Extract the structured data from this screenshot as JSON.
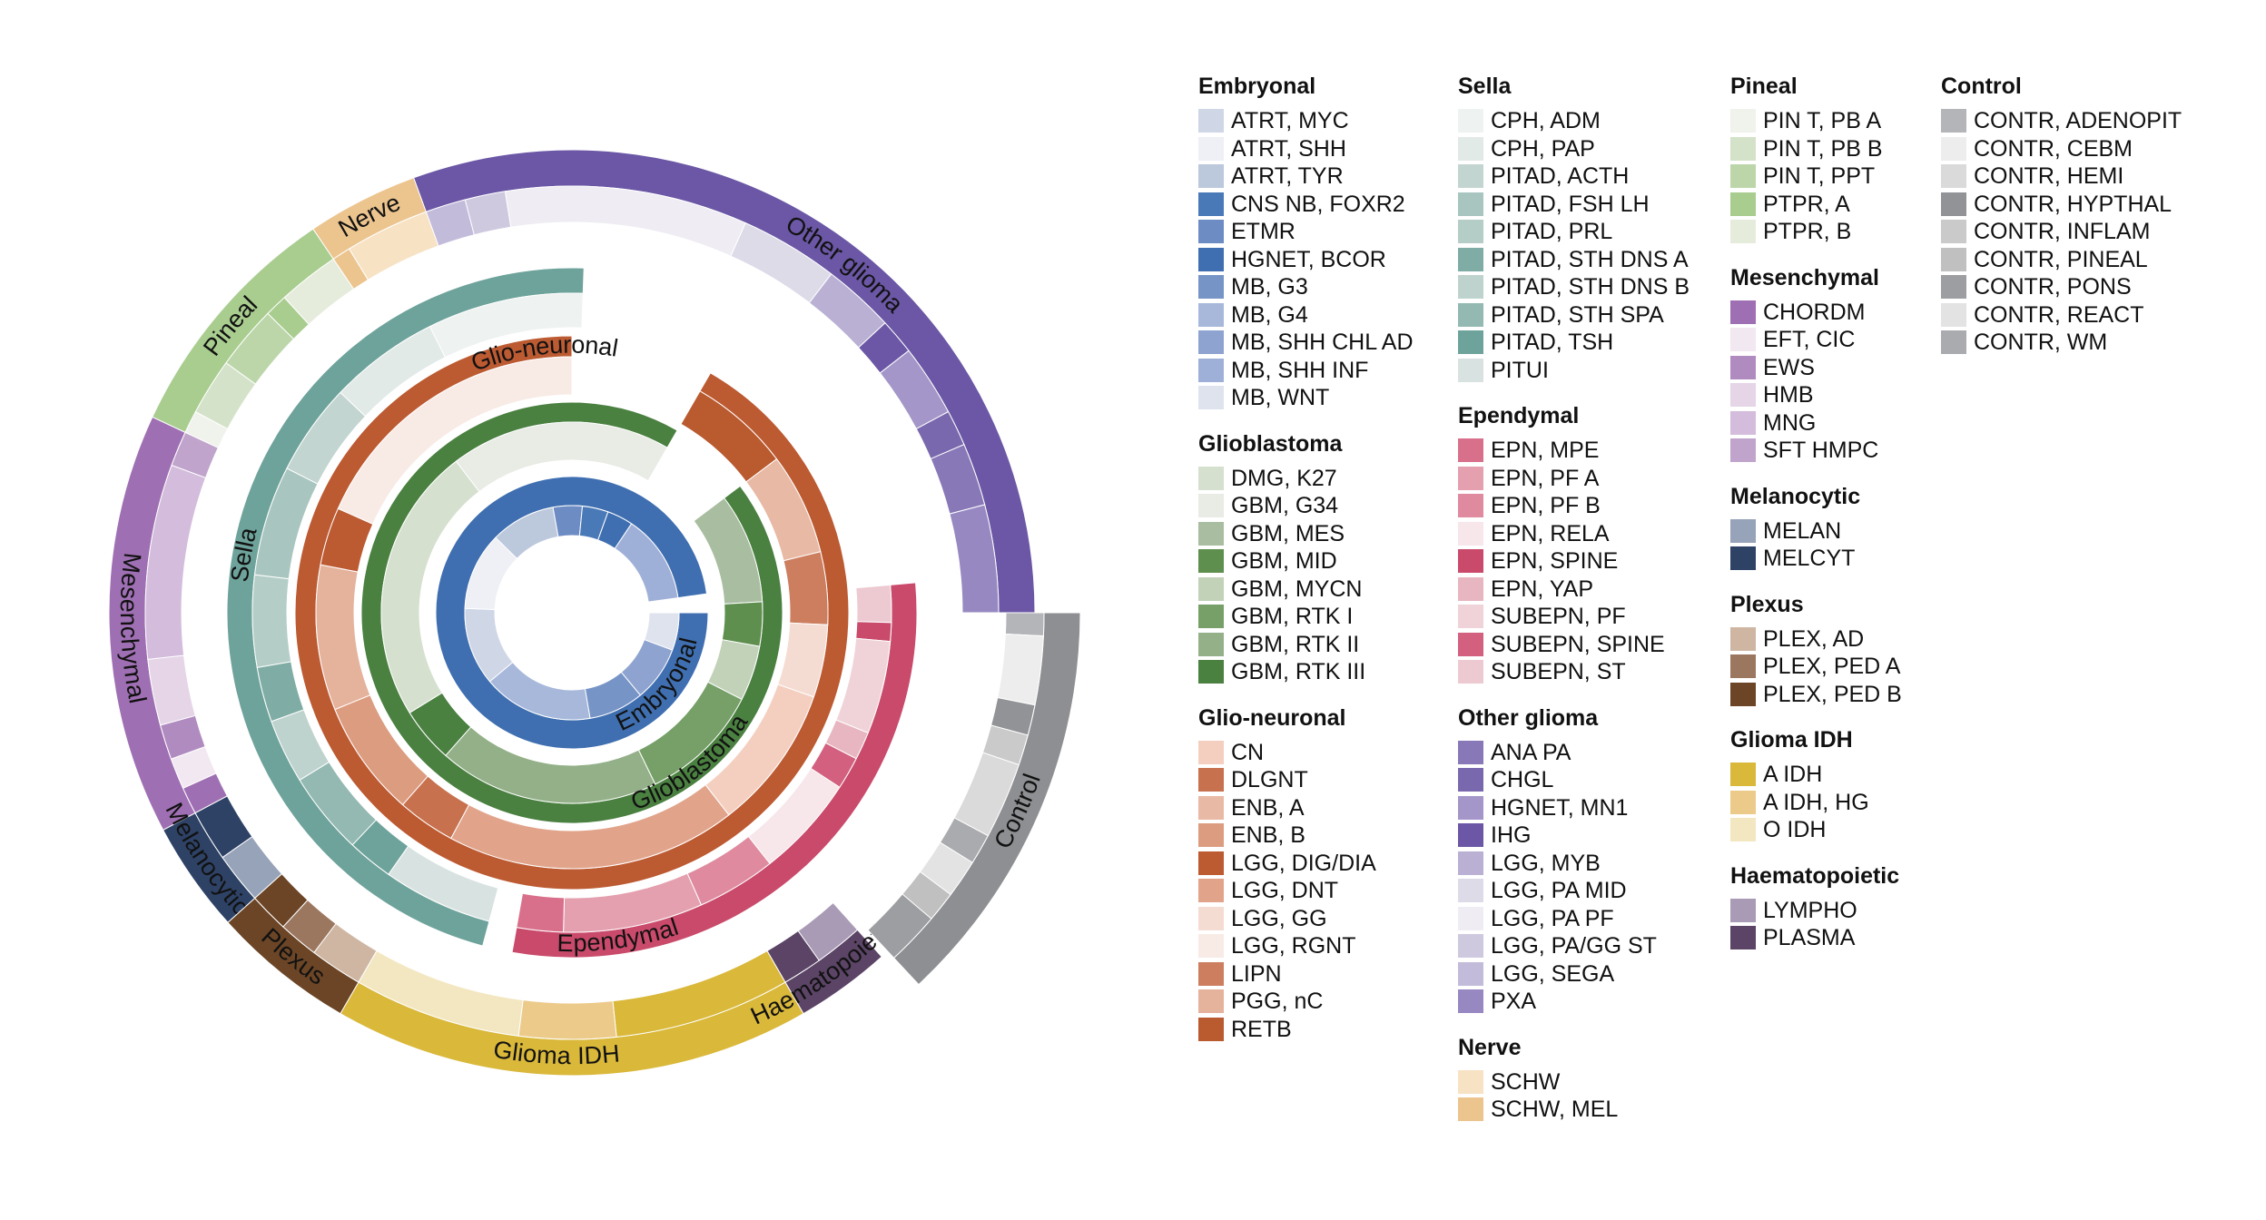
{
  "chart_data": {
    "type": "sunburst",
    "groups": [
      {
        "name": "Embryonal",
        "items": [
          {
            "label": "ATRT, MYC",
            "color": "#cfd6e6"
          },
          {
            "label": "ATRT, SHH",
            "color": "#eef0f5"
          },
          {
            "label": "ATRT, TYR",
            "color": "#bcc8dc"
          },
          {
            "label": "CNS NB, FOXR2",
            "color": "#4a79b8"
          },
          {
            "label": "ETMR",
            "color": "#6d8cc4"
          },
          {
            "label": "HGNET, BCOR",
            "color": "#3f6fb0"
          },
          {
            "label": "MB, G3",
            "color": "#7794c7"
          },
          {
            "label": "MB, G4",
            "color": "#a7b8db"
          },
          {
            "label": "MB, SHH CHL AD",
            "color": "#8ea3cf"
          },
          {
            "label": "MB, SHH INF",
            "color": "#9fb0d8"
          },
          {
            "label": "MB, WNT",
            "color": "#dfe3ee"
          }
        ]
      },
      {
        "name": "Glioblastoma",
        "items": [
          {
            "label": "DMG, K27",
            "color": "#d5e0cf"
          },
          {
            "label": "GBM, G34",
            "color": "#e8ece5"
          },
          {
            "label": "GBM, MES",
            "color": "#a9bea0"
          },
          {
            "label": "GBM, MID",
            "color": "#5f8f4f"
          },
          {
            "label": "GBM, MYCN",
            "color": "#c1d2b8"
          },
          {
            "label": "GBM, RTK I",
            "color": "#76a068"
          },
          {
            "label": "GBM, RTK II",
            "color": "#93b088"
          },
          {
            "label": "GBM, RTK III",
            "color": "#4a8040"
          }
        ]
      },
      {
        "name": "Glio-neuronal",
        "items": [
          {
            "label": "CN",
            "color": "#f4cfc0"
          },
          {
            "label": "DLGNT",
            "color": "#c7714e"
          },
          {
            "label": "ENB, A",
            "color": "#e8b9a4"
          },
          {
            "label": "ENB, B",
            "color": "#dc9c80"
          },
          {
            "label": "LGG, DIG/DIA",
            "color": "#bc5a32"
          },
          {
            "label": "LGG, DNT",
            "color": "#e1a48b"
          },
          {
            "label": "LGG, GG",
            "color": "#f5dcd2"
          },
          {
            "label": "LGG, RGNT",
            "color": "#f8ebe6"
          },
          {
            "label": "LIPN",
            "color": "#cc7e5f"
          },
          {
            "label": "PGG, nC",
            "color": "#e5b29c"
          },
          {
            "label": "RETB",
            "color": "#b95a2f"
          }
        ]
      },
      {
        "name": "Sella",
        "items": [
          {
            "label": "CPH, ADM",
            "color": "#eef2f1"
          },
          {
            "label": "CPH, PAP",
            "color": "#e2eae7"
          },
          {
            "label": "PITAD, ACTH",
            "color": "#c3d5d0"
          },
          {
            "label": "PITAD, FSH LH",
            "color": "#a9c5bf"
          },
          {
            "label": "PITAD, PRL",
            "color": "#b4cdc7"
          },
          {
            "label": "PITAD, STH DNS A",
            "color": "#7fada5"
          },
          {
            "label": "PITAD, STH DNS B",
            "color": "#bfd3ce"
          },
          {
            "label": "PITAD, STH SPA",
            "color": "#93b9b2"
          },
          {
            "label": "PITAD, TSH",
            "color": "#6ea39b"
          },
          {
            "label": "PITUI",
            "color": "#d8e3e1"
          }
        ]
      },
      {
        "name": "Ependymal",
        "items": [
          {
            "label": "EPN, MPE",
            "color": "#d9708b"
          },
          {
            "label": "EPN, PF A",
            "color": "#e4a0ae"
          },
          {
            "label": "EPN, PF B",
            "color": "#df8a9e"
          },
          {
            "label": "EPN, RELA",
            "color": "#f7e6ea"
          },
          {
            "label": "EPN, SPINE",
            "color": "#c94a6b"
          },
          {
            "label": "EPN, YAP",
            "color": "#e8b6c0"
          },
          {
            "label": "SUBEPN, PF",
            "color": "#f0d3d9"
          },
          {
            "label": "SUBEPN, SPINE",
            "color": "#d2607e"
          },
          {
            "label": "SUBEPN, ST",
            "color": "#edcad2"
          }
        ]
      },
      {
        "name": "Other glioma",
        "items": [
          {
            "label": "ANA PA",
            "color": "#8878b8"
          },
          {
            "label": "CHGL",
            "color": "#7a68ae"
          },
          {
            "label": "HGNET, MN1",
            "color": "#a496c8"
          },
          {
            "label": "IHG",
            "color": "#6b57a5"
          },
          {
            "label": "LGG, MYB",
            "color": "#b9b0d4"
          },
          {
            "label": "LGG, PA MID",
            "color": "#dedbe9"
          },
          {
            "label": "LGG, PA PF",
            "color": "#efedf3"
          },
          {
            "label": "LGG, PA/GG ST",
            "color": "#cfc9e0"
          },
          {
            "label": "LGG, SEGA",
            "color": "#c3bbda"
          },
          {
            "label": "PXA",
            "color": "#9788c2"
          }
        ]
      },
      {
        "name": "Nerve",
        "items": [
          {
            "label": "SCHW",
            "color": "#f7e2c4"
          },
          {
            "label": "SCHW, MEL",
            "color": "#ecc48e"
          }
        ]
      },
      {
        "name": "Pineal",
        "items": [
          {
            "label": "PIN T, PB A",
            "color": "#f0f2ec"
          },
          {
            "label": "PIN T, PB B",
            "color": "#d3e2c8"
          },
          {
            "label": "PIN T, PPT",
            "color": "#bcd6aa"
          },
          {
            "label": "PTPR, A",
            "color": "#a9cd8f"
          },
          {
            "label": "PTPR, B",
            "color": "#e6ecdc"
          }
        ]
      },
      {
        "name": "Mesenchymal",
        "items": [
          {
            "label": "CHORDM",
            "color": "#9f6fb3"
          },
          {
            "label": "EFT, CIC",
            "color": "#f2e8f1"
          },
          {
            "label": "EWS",
            "color": "#b08bc0"
          },
          {
            "label": "HMB",
            "color": "#e5d5e7"
          },
          {
            "label": "MNG",
            "color": "#d3bcdc"
          },
          {
            "label": "SFT HMPC",
            "color": "#c0a4cc"
          }
        ]
      },
      {
        "name": "Melanocytic",
        "items": [
          {
            "label": "MELAN",
            "color": "#97a3b8"
          },
          {
            "label": "MELCYT",
            "color": "#2e4266"
          }
        ]
      },
      {
        "name": "Plexus",
        "items": [
          {
            "label": "PLEX, AD",
            "color": "#cfb6a3"
          },
          {
            "label": "PLEX, PED A",
            "color": "#9c7760"
          },
          {
            "label": "PLEX, PED B",
            "color": "#6b4526"
          }
        ]
      },
      {
        "name": "Glioma IDH",
        "items": [
          {
            "label": "A IDH",
            "color": "#d9b83a"
          },
          {
            "label": "A IDH, HG",
            "color": "#ecca8a"
          },
          {
            "label": "O IDH",
            "color": "#f3e7c2"
          }
        ]
      },
      {
        "name": "Haematopoietic",
        "items": [
          {
            "label": "LYMPHO",
            "color": "#a99bb5"
          },
          {
            "label": "PLASMA",
            "color": "#5b4466"
          }
        ]
      },
      {
        "name": "Control",
        "items": [
          {
            "label": "CONTR, ADENOPIT",
            "color": "#b4b5b9"
          },
          {
            "label": "CONTR, CEBM",
            "color": "#ededed"
          },
          {
            "label": "CONTR, HEMI",
            "color": "#dadadb"
          },
          {
            "label": "CONTR, HYPTHAL",
            "color": "#929396"
          },
          {
            "label": "CONTR, INFLAM",
            "color": "#cacacb"
          },
          {
            "label": "CONTR, PINEAL",
            "color": "#c0c0c1"
          },
          {
            "label": "CONTR, PONS",
            "color": "#9d9ea1"
          },
          {
            "label": "CONTR, REACT",
            "color": "#e3e3e4"
          },
          {
            "label": "CONTR, WM",
            "color": "#aaabae"
          }
        ]
      }
    ],
    "rings": [
      {
        "name": "Embryonal",
        "color": "#3f6fb0",
        "label_color": "#111111",
        "segments": [
          {
            "label": "MB, WNT",
            "share": 0.058
          },
          {
            "label": "MB, SHH CHL AD",
            "share": 0.085
          },
          {
            "label": "MB, G3",
            "share": 0.085
          },
          {
            "label": "MB, G4",
            "share": 0.17
          },
          {
            "label": "ATRT, MYC",
            "share": 0.12
          },
          {
            "label": "ATRT, SHH",
            "share": 0.12
          },
          {
            "label": "ATRT, TYR",
            "share": 0.1
          },
          {
            "label": "ETMR",
            "share": 0.045
          },
          {
            "label": "CNS NB, FOXR2",
            "share": 0.04
          },
          {
            "label": "HGNET, BCOR",
            "share": 0.04
          },
          {
            "label": "MB, SHH INF",
            "share": 0.137
          }
        ]
      },
      {
        "name": "Glioblastoma",
        "color": "#4a8040",
        "label_color": "#111111",
        "segments": [
          {
            "label": "GBM, MES",
            "share": 0.1
          },
          {
            "label": "GBM, MID",
            "share": 0.04
          },
          {
            "label": "GBM, MYCN",
            "share": 0.05
          },
          {
            "label": "GBM, RTK I",
            "share": 0.11
          },
          {
            "label": "GBM, RTK II",
            "share": 0.2
          },
          {
            "label": "GBM, RTK III",
            "share": 0.05
          },
          {
            "label": "DMG, K27",
            "share": 0.25
          },
          {
            "label": "GBM, G34",
            "share": 0.2
          }
        ]
      },
      {
        "name": "Glio-neuronal",
        "color": "#bc5a32",
        "label_color": "#111111",
        "segments": [
          {
            "label": "RETB",
            "share": 0.07
          },
          {
            "label": "ENB, A",
            "share": 0.07
          },
          {
            "label": "LIPN",
            "share": 0.05
          },
          {
            "label": "LGG, GG",
            "share": 0.05
          },
          {
            "label": "CN",
            "share": 0.1
          },
          {
            "label": "LGG, DNT",
            "share": 0.2
          },
          {
            "label": "DLGNT",
            "share": 0.04
          },
          {
            "label": "ENB, B",
            "share": 0.08
          },
          {
            "label": "PGG, nC",
            "share": 0.1
          },
          {
            "label": "LGG, DIG/DIA",
            "share": 0.04
          },
          {
            "label": "LGG, RGNT",
            "share": 0.2
          }
        ]
      },
      {
        "name": "Sella",
        "color": "#6ea39b",
        "label_color": "#111111",
        "segments": [
          {
            "label": "PITUI",
            "share": 0.12
          },
          {
            "label": "PITAD, TSH",
            "share": 0.05
          },
          {
            "label": "PITAD, STH SPA",
            "share": 0.09
          },
          {
            "label": "PITAD, STH DNS B",
            "share": 0.07
          },
          {
            "label": "PITAD, STH DNS A",
            "share": 0.06
          },
          {
            "label": "PITAD, PRL",
            "share": 0.1
          },
          {
            "label": "PITAD, FSH LH",
            "share": 0.12
          },
          {
            "label": "PITAD, ACTH",
            "share": 0.1
          },
          {
            "label": "CPH, PAP",
            "share": 0.12
          },
          {
            "label": "CPH, ADM",
            "share": 0.17
          }
        ]
      },
      {
        "name": "Ependymal",
        "color": "#c94a6b",
        "label_color": "#111111",
        "segments": [
          {
            "label": "SUBEPN, ST",
            "share": 0.08
          },
          {
            "label": "EPN, SPINE",
            "share": 0.04
          },
          {
            "label": "SUBEPN, PF",
            "share": 0.2
          },
          {
            "label": "EPN, YAP",
            "share": 0.06
          },
          {
            "label": "SUBEPN, SPINE",
            "share": 0.07
          },
          {
            "label": "EPN, RELA",
            "share": 0.22
          },
          {
            "label": "EPN, PF B",
            "share": 0.17
          },
          {
            "label": "EPN, PF A",
            "share": 0.3
          },
          {
            "label": "EPN, MPE",
            "share": 0.1
          }
        ]
      },
      {
        "name": "Other glioma",
        "color": "#6b57a5",
        "label_color": "#111111",
        "segments": [
          {
            "label": "LGG, SEGA",
            "share": 0.045
          },
          {
            "label": "LGG, PA/GG ST",
            "share": 0.045
          },
          {
            "label": "LGG, PA PF",
            "share": 0.27
          },
          {
            "label": "LGG, PA MID",
            "share": 0.11
          },
          {
            "label": "LGG, MYB",
            "share": 0.08
          },
          {
            "label": "IHG",
            "share": 0.04
          },
          {
            "label": "HGNET, MN1",
            "share": 0.08
          },
          {
            "label": "CHGL",
            "share": 0.04
          },
          {
            "label": "ANA PA",
            "share": 0.07
          },
          {
            "label": "PXA",
            "share": 0.12
          }
        ]
      },
      {
        "name": "Nerve",
        "color": "#ecc48e",
        "label_color": "#111111",
        "segments": [
          {
            "label": "SCHW, MEL",
            "share": 0.18
          },
          {
            "label": "SCHW",
            "share": 0.82
          }
        ]
      },
      {
        "name": "Pineal",
        "color": "#a9cd8f",
        "label_color": "#111111",
        "segments": [
          {
            "label": "PIN T, PB A",
            "share": 0.1
          },
          {
            "label": "PIN T, PB B",
            "share": 0.25
          },
          {
            "label": "PIN T, PPT",
            "share": 0.28
          },
          {
            "label": "PTPR, A",
            "share": 0.1
          },
          {
            "label": "PTPR, B",
            "share": 0.27
          }
        ]
      },
      {
        "name": "Mesenchymal",
        "color": "#9f6fb3",
        "label_color": "#111111",
        "segments": [
          {
            "label": "CHORDM",
            "share": 0.07
          },
          {
            "label": "EFT, CIC",
            "share": 0.08
          },
          {
            "label": "EWS",
            "share": 0.09
          },
          {
            "label": "HMB",
            "share": 0.17
          },
          {
            "label": "MNG",
            "share": 0.5
          },
          {
            "label": "SFT HMPC",
            "share": 0.09
          }
        ]
      },
      {
        "name": "Melanocytic",
        "color": "#2e4266",
        "label_color": "#111111",
        "segments": [
          {
            "label": "MELAN",
            "share": 0.5
          },
          {
            "label": "MELCYT",
            "share": 0.5
          }
        ]
      },
      {
        "name": "Plexus",
        "color": "#6b4526",
        "label_color": "#111111",
        "segments": [
          {
            "label": "PLEX, AD",
            "share": 0.4
          },
          {
            "label": "PLEX, PED A",
            "share": 0.3
          },
          {
            "label": "PLEX, PED B",
            "share": 0.3
          }
        ]
      },
      {
        "name": "Glioma IDH",
        "color": "#d9b83a",
        "label_color": "#111111",
        "segments": [
          {
            "label": "A IDH",
            "share": 0.4
          },
          {
            "label": "A IDH, HG",
            "share": 0.22
          },
          {
            "label": "O IDH",
            "share": 0.38
          }
        ]
      },
      {
        "name": "Haematopoietic",
        "color": "#5b4466",
        "label_color": "#111111",
        "segments": [
          {
            "label": "LYMPHO",
            "share": 0.55
          },
          {
            "label": "PLASMA",
            "share": 0.45
          }
        ]
      },
      {
        "name": "Control",
        "color": "#8e8f92",
        "label_color": "#111111",
        "segments": [
          {
            "label": "CONTR, ADENOPIT",
            "share": 0.06
          },
          {
            "label": "CONTR, CEBM",
            "share": 0.18
          },
          {
            "label": "CONTR, HYPTHAL",
            "share": 0.08
          },
          {
            "label": "CONTR, INFLAM",
            "share": 0.08
          },
          {
            "label": "CONTR, HEMI",
            "share": 0.2
          },
          {
            "label": "CONTR, WM",
            "share": 0.08
          },
          {
            "label": "CONTR, REACT",
            "share": 0.1
          },
          {
            "label": "CONTR, PINEAL",
            "share": 0.08
          },
          {
            "label": "CONTR, PONS",
            "share": 0.14
          }
        ]
      }
    ]
  }
}
